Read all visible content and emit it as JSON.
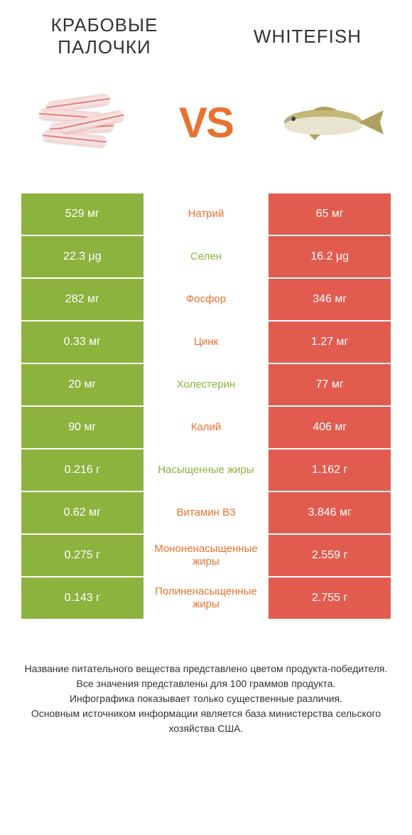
{
  "header": {
    "left_title": "КРАБОВЫЕ ПАЛОЧКИ",
    "right_title": "WHITEFISH",
    "vs_label": "VS"
  },
  "colors": {
    "green": "#8cb33e",
    "red": "#e15c4f",
    "orange_text": "#e8722f",
    "green_text": "#8cb33e"
  },
  "comparison": {
    "type": "table",
    "left_bg": "#8cb33e",
    "right_bg": "#e15c4f",
    "rows": [
      {
        "left": "529 мг",
        "label": "Натрий",
        "right": "65 мг",
        "winner": "right"
      },
      {
        "left": "22.3 µg",
        "label": "Селен",
        "right": "16.2 µg",
        "winner": "left"
      },
      {
        "left": "282 мг",
        "label": "Фосфор",
        "right": "346 мг",
        "winner": "right"
      },
      {
        "left": "0.33 мг",
        "label": "Цинк",
        "right": "1.27 мг",
        "winner": "right"
      },
      {
        "left": "20 мг",
        "label": "Холестерин",
        "right": "77 мг",
        "winner": "left"
      },
      {
        "left": "90 мг",
        "label": "Калий",
        "right": "406 мг",
        "winner": "right"
      },
      {
        "left": "0.216 г",
        "label": "Насыщенные жиры",
        "right": "1.162 г",
        "winner": "left"
      },
      {
        "left": "0.62 мг",
        "label": "Витамин B3",
        "right": "3.846 мг",
        "winner": "right"
      },
      {
        "left": "0.275 г",
        "label": "Мононенасыщенные жиры",
        "right": "2.559 г",
        "winner": "right"
      },
      {
        "left": "0.143 г",
        "label": "Полиненасыщенные жиры",
        "right": "2.755 г",
        "winner": "right"
      }
    ]
  },
  "footnotes": [
    "Название питательного вещества представлено цветом продукта-победителя.",
    "Все значения представлены для 100 граммов продукта.",
    "Инфографика показывает только существенные различия.",
    "Основным источником информации является база министерства сельского хозяйства США."
  ]
}
